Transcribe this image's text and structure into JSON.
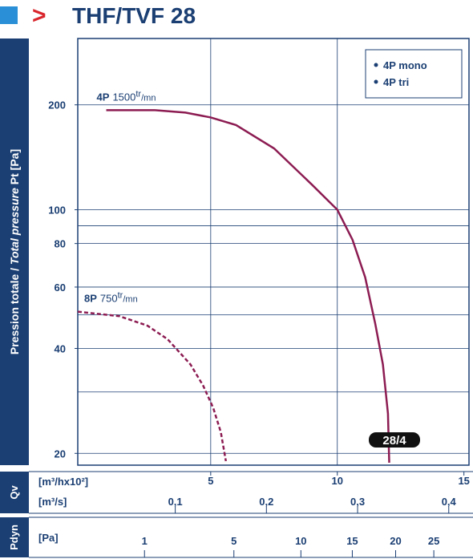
{
  "header": {
    "marker": ">",
    "title": "THF/TVF 28"
  },
  "chart_data": {
    "type": "line",
    "y_label_fr": "Pression totale / ",
    "y_label_en": "Total pressure",
    "y_label_unit": " Pt [Pa]",
    "yscale": "log",
    "ylim": [
      18.5,
      310
    ],
    "yticks": [
      20,
      40,
      60,
      80,
      100,
      200
    ],
    "ygrid": [
      20,
      30,
      40,
      50,
      60,
      80,
      90,
      100,
      200
    ],
    "xlim": [
      -0.25,
      15.2
    ],
    "xticks": [
      5,
      10,
      15
    ],
    "xgrid": [
      5,
      10
    ],
    "qv_label": "Qv",
    "x_unit": "[m³/hx10²]",
    "x2_unit": "[m³/s]",
    "x2lim": [
      -0.00694,
      0.4222
    ],
    "x2ticks": [
      {
        "value": 0.1,
        "label": "0,1"
      },
      {
        "value": 0.2,
        "label": "0,2"
      },
      {
        "value": 0.3,
        "label": "0,3"
      },
      {
        "value": 0.4,
        "label": "0,4"
      }
    ],
    "pdyn_label": "Pdyn",
    "x3_unit": "[Pa]",
    "x3scale": "sqrt",
    "x3lim": [
      0.006,
      30.1
    ],
    "x3ticks": [
      1,
      5,
      10,
      15,
      20,
      25
    ],
    "legend": [
      "4P mono",
      "4P tri"
    ],
    "badge": "28/4",
    "series": [
      {
        "name": "4P",
        "speed": "1500",
        "speed_unit_top": "tr",
        "speed_unit_bottom": "/mn",
        "color": "#8c1c52",
        "dashed": false,
        "x": [
          0.875,
          2.8,
          4,
          5,
          6,
          7.5,
          9,
          10,
          10.6,
          11.1,
          11.5,
          11.8,
          12,
          12.05
        ],
        "values": [
          193,
          193,
          190,
          184,
          175,
          150,
          118,
          100,
          82,
          64,
          47,
          36,
          26,
          18.8
        ]
      },
      {
        "name": "8P",
        "speed": "750",
        "speed_unit_top": "tr",
        "speed_unit_bottom": "/mn",
        "color": "#8c1c52",
        "dashed": true,
        "x": [
          -0.25,
          1.4,
          2.5,
          3.3,
          4.2,
          4.7,
          5.1,
          5.4,
          5.6
        ],
        "values": [
          51,
          49.5,
          46.5,
          42.5,
          36,
          31.3,
          27,
          23,
          19
        ]
      }
    ]
  }
}
